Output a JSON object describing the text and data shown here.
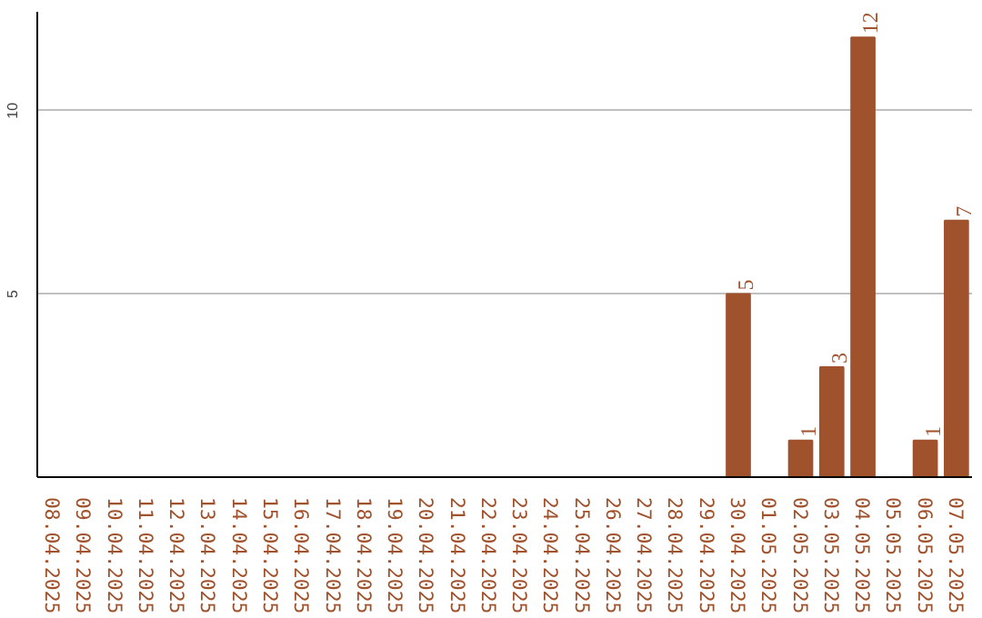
{
  "chart_data": {
    "type": "bar",
    "categories": [
      "08.04.2025",
      "09.04.2025",
      "10.04.2025",
      "11.04.2025",
      "12.04.2025",
      "13.04.2025",
      "14.04.2025",
      "15.04.2025",
      "16.04.2025",
      "17.04.2025",
      "18.04.2025",
      "19.04.2025",
      "20.04.2025",
      "21.04.2025",
      "22.04.2025",
      "23.04.2025",
      "24.04.2025",
      "25.04.2025",
      "26.04.2025",
      "27.04.2025",
      "28.04.2025",
      "29.04.2025",
      "30.04.2025",
      "01.05.2025",
      "02.05.2025",
      "03.05.2025",
      "04.05.2025",
      "05.05.2025",
      "06.05.2025",
      "07.05.2025"
    ],
    "values": [
      0,
      0,
      0,
      0,
      0,
      0,
      0,
      0,
      0,
      0,
      0,
      0,
      0,
      0,
      0,
      0,
      0,
      0,
      0,
      0,
      0,
      0,
      5,
      0,
      1,
      3,
      12,
      0,
      1,
      7
    ],
    "value_labels": [
      null,
      null,
      null,
      null,
      null,
      null,
      null,
      null,
      null,
      null,
      null,
      null,
      null,
      null,
      null,
      null,
      null,
      null,
      null,
      null,
      null,
      null,
      "5",
      null,
      "1",
      "3",
      "12",
      null,
      "1",
      "7"
    ],
    "color": "#a0522d",
    "ylim": [
      0,
      12.7
    ],
    "yticks": [
      5,
      10
    ],
    "grid": "y"
  }
}
